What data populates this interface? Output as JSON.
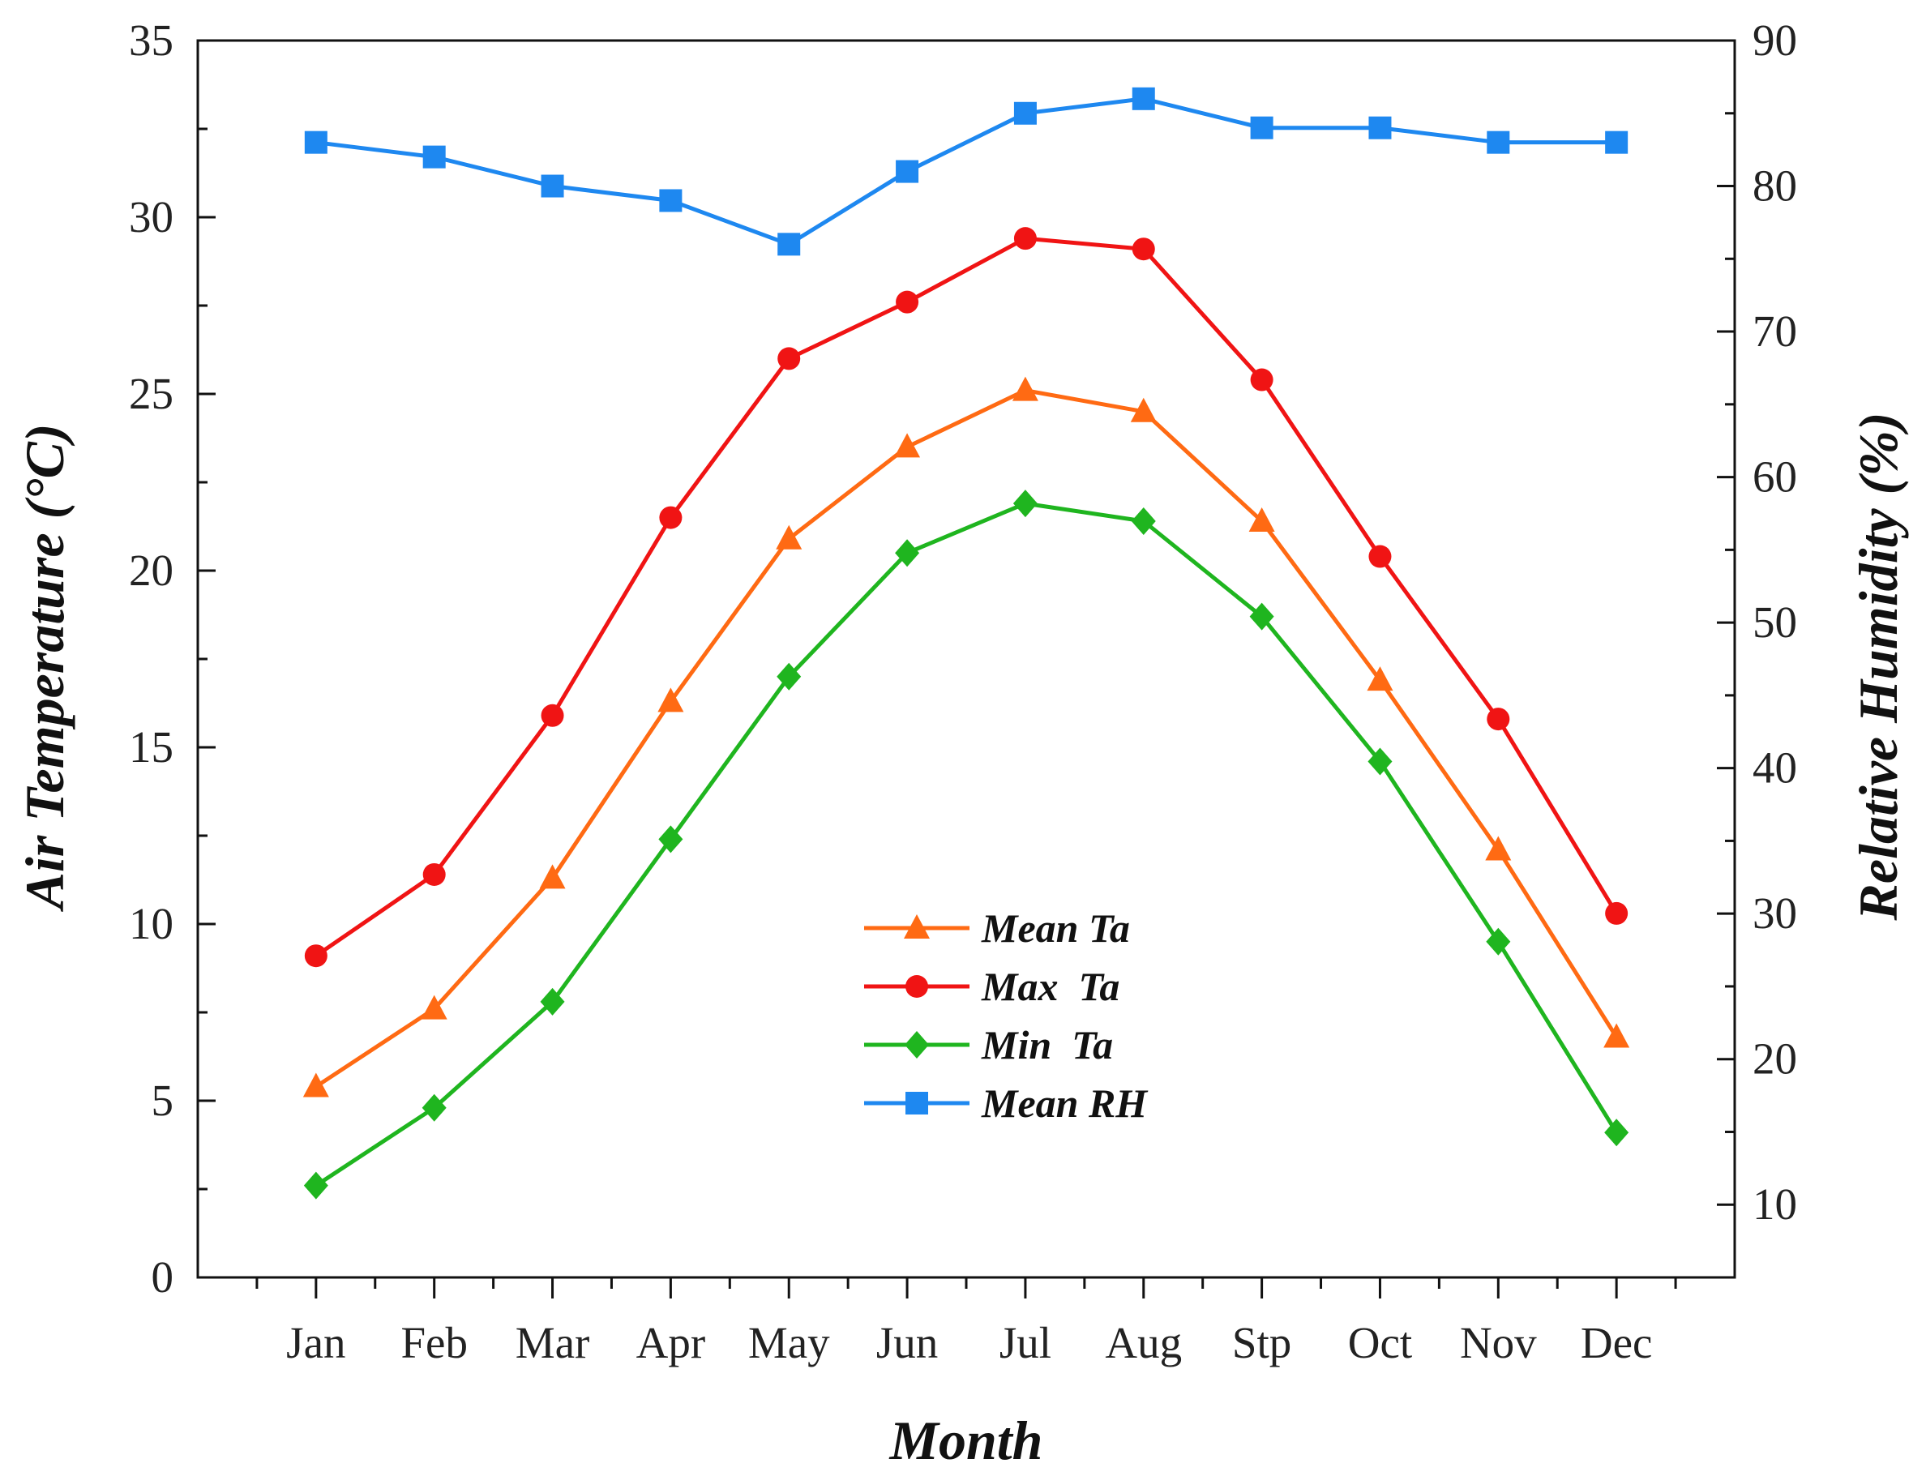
{
  "chart_data": {
    "type": "line",
    "xlabel": "Month",
    "ylabel": "Air Temperature (°C)",
    "y2label": "Relative Humidity (%)",
    "categories": [
      "Jan",
      "Feb",
      "Mar",
      "Apr",
      "May",
      "Jun",
      "Jul",
      "Aug",
      "Stp",
      "Oct",
      "Nov",
      "Dec"
    ],
    "ylim": [
      0,
      35
    ],
    "yticks": [
      0,
      5,
      10,
      15,
      20,
      25,
      30,
      35
    ],
    "y2lim": [
      5,
      90
    ],
    "y2ticks": [
      10,
      20,
      30,
      40,
      50,
      60,
      70,
      80,
      90
    ],
    "grid": false,
    "legend_position": "center",
    "series": [
      {
        "name": "Mean Ta",
        "axis": "left",
        "marker": "triangle",
        "color": "#ff6a13",
        "values": [
          5.4,
          7.6,
          11.3,
          16.3,
          20.9,
          23.5,
          25.1,
          24.5,
          21.4,
          16.9,
          12.1,
          6.8
        ]
      },
      {
        "name": "Max  Ta",
        "axis": "left",
        "marker": "circle",
        "color": "#f01414",
        "values": [
          9.1,
          11.4,
          15.9,
          21.5,
          26.0,
          27.6,
          29.4,
          29.1,
          25.4,
          20.4,
          15.8,
          10.3
        ]
      },
      {
        "name": "Min  Ta",
        "axis": "left",
        "marker": "diamond",
        "color": "#1fb51f",
        "values": [
          2.6,
          4.8,
          7.8,
          12.4,
          17.0,
          20.5,
          21.9,
          21.4,
          18.7,
          14.6,
          9.5,
          4.1
        ]
      },
      {
        "name": "Mean RH",
        "axis": "right",
        "marker": "square",
        "color": "#1e88f0",
        "values": [
          83,
          82,
          80,
          79,
          76,
          81,
          85,
          86,
          84,
          84,
          83,
          83
        ]
      }
    ]
  }
}
